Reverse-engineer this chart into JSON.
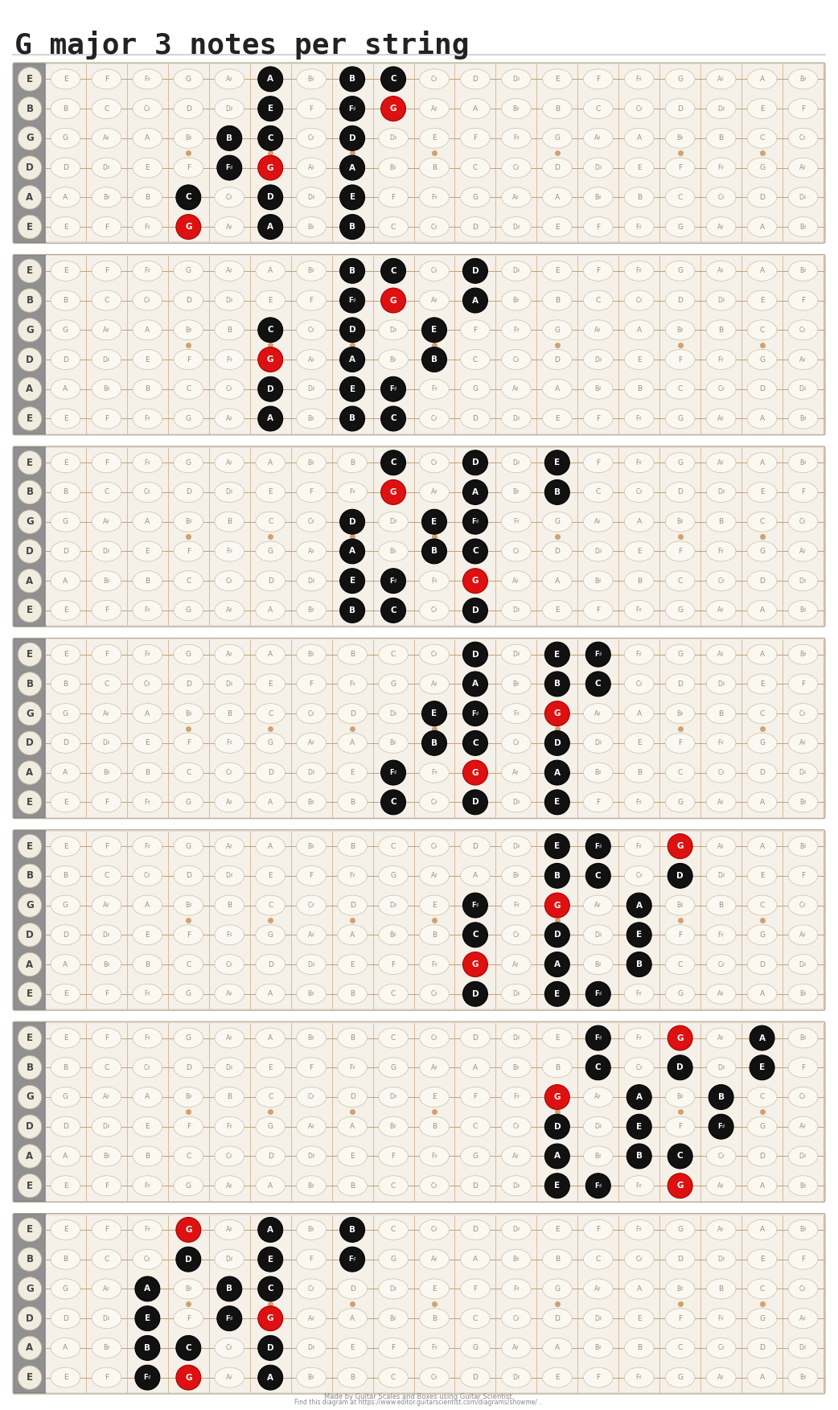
{
  "title": "G major 3 notes per string",
  "background_color": "#ffffff",
  "title_color": "#222222",
  "title_fontsize": 26,
  "diagram_bg": "#f5f0e8",
  "num_strings": 6,
  "num_frets": 19,
  "string_names_top_to_bottom": [
    "E",
    "B",
    "G",
    "D",
    "A",
    "E"
  ],
  "open_notes_midi": [
    4,
    11,
    7,
    2,
    9,
    4
  ],
  "chromatic": [
    "C",
    "C♯",
    "D",
    "D♯",
    "E",
    "F",
    "F♯",
    "G",
    "A♯",
    "A",
    "B♯",
    "B"
  ],
  "num_diagrams": 7,
  "diagrams": [
    {
      "notes": [
        {
          "string": 0,
          "fret": 5,
          "note": "A",
          "type": "black"
        },
        {
          "string": 0,
          "fret": 7,
          "note": "B",
          "type": "black"
        },
        {
          "string": 0,
          "fret": 8,
          "note": "C",
          "type": "black"
        },
        {
          "string": 1,
          "fret": 5,
          "note": "E",
          "type": "black"
        },
        {
          "string": 1,
          "fret": 7,
          "note": "F♯",
          "type": "black"
        },
        {
          "string": 1,
          "fret": 8,
          "note": "G",
          "type": "red"
        },
        {
          "string": 2,
          "fret": 4,
          "note": "B",
          "type": "black"
        },
        {
          "string": 2,
          "fret": 5,
          "note": "C",
          "type": "black"
        },
        {
          "string": 2,
          "fret": 7,
          "note": "D",
          "type": "black"
        },
        {
          "string": 3,
          "fret": 4,
          "note": "F♯",
          "type": "black"
        },
        {
          "string": 3,
          "fret": 5,
          "note": "G",
          "type": "red"
        },
        {
          "string": 3,
          "fret": 7,
          "note": "A",
          "type": "black"
        },
        {
          "string": 4,
          "fret": 3,
          "note": "C",
          "type": "black"
        },
        {
          "string": 4,
          "fret": 5,
          "note": "D",
          "type": "black"
        },
        {
          "string": 4,
          "fret": 7,
          "note": "E",
          "type": "black"
        },
        {
          "string": 5,
          "fret": 3,
          "note": "G",
          "type": "red"
        },
        {
          "string": 5,
          "fret": 5,
          "note": "A",
          "type": "black"
        },
        {
          "string": 5,
          "fret": 7,
          "note": "B",
          "type": "black"
        }
      ]
    },
    {
      "notes": [
        {
          "string": 0,
          "fret": 7,
          "note": "B",
          "type": "black"
        },
        {
          "string": 0,
          "fret": 8,
          "note": "C",
          "type": "black"
        },
        {
          "string": 0,
          "fret": 10,
          "note": "D",
          "type": "black"
        },
        {
          "string": 1,
          "fret": 7,
          "note": "F♯",
          "type": "black"
        },
        {
          "string": 1,
          "fret": 8,
          "note": "G",
          "type": "red"
        },
        {
          "string": 1,
          "fret": 10,
          "note": "A",
          "type": "black"
        },
        {
          "string": 2,
          "fret": 5,
          "note": "C",
          "type": "black"
        },
        {
          "string": 2,
          "fret": 7,
          "note": "D",
          "type": "black"
        },
        {
          "string": 2,
          "fret": 9,
          "note": "E",
          "type": "black"
        },
        {
          "string": 3,
          "fret": 5,
          "note": "G",
          "type": "red"
        },
        {
          "string": 3,
          "fret": 7,
          "note": "A",
          "type": "black"
        },
        {
          "string": 3,
          "fret": 9,
          "note": "B",
          "type": "black"
        },
        {
          "string": 4,
          "fret": 5,
          "note": "D",
          "type": "black"
        },
        {
          "string": 4,
          "fret": 7,
          "note": "E",
          "type": "black"
        },
        {
          "string": 4,
          "fret": 8,
          "note": "F♯",
          "type": "black"
        },
        {
          "string": 5,
          "fret": 5,
          "note": "A",
          "type": "black"
        },
        {
          "string": 5,
          "fret": 7,
          "note": "B",
          "type": "black"
        },
        {
          "string": 5,
          "fret": 8,
          "note": "C",
          "type": "black"
        }
      ]
    },
    {
      "notes": [
        {
          "string": 0,
          "fret": 8,
          "note": "C",
          "type": "black"
        },
        {
          "string": 0,
          "fret": 10,
          "note": "D",
          "type": "black"
        },
        {
          "string": 0,
          "fret": 12,
          "note": "E",
          "type": "black"
        },
        {
          "string": 1,
          "fret": 8,
          "note": "G",
          "type": "red"
        },
        {
          "string": 1,
          "fret": 10,
          "note": "A",
          "type": "black"
        },
        {
          "string": 1,
          "fret": 12,
          "note": "B",
          "type": "black"
        },
        {
          "string": 2,
          "fret": 7,
          "note": "D",
          "type": "black"
        },
        {
          "string": 2,
          "fret": 9,
          "note": "E",
          "type": "black"
        },
        {
          "string": 2,
          "fret": 10,
          "note": "F♯",
          "type": "black"
        },
        {
          "string": 3,
          "fret": 7,
          "note": "A",
          "type": "black"
        },
        {
          "string": 3,
          "fret": 9,
          "note": "B",
          "type": "black"
        },
        {
          "string": 3,
          "fret": 10,
          "note": "C",
          "type": "black"
        },
        {
          "string": 4,
          "fret": 7,
          "note": "E",
          "type": "black"
        },
        {
          "string": 4,
          "fret": 8,
          "note": "F♯",
          "type": "black"
        },
        {
          "string": 4,
          "fret": 10,
          "note": "G",
          "type": "red"
        },
        {
          "string": 5,
          "fret": 7,
          "note": "B",
          "type": "black"
        },
        {
          "string": 5,
          "fret": 8,
          "note": "C",
          "type": "black"
        },
        {
          "string": 5,
          "fret": 10,
          "note": "D",
          "type": "black"
        }
      ]
    },
    {
      "notes": [
        {
          "string": 0,
          "fret": 10,
          "note": "D",
          "type": "black"
        },
        {
          "string": 0,
          "fret": 12,
          "note": "E",
          "type": "black"
        },
        {
          "string": 0,
          "fret": 13,
          "note": "F♯",
          "type": "black"
        },
        {
          "string": 1,
          "fret": 10,
          "note": "A",
          "type": "black"
        },
        {
          "string": 1,
          "fret": 12,
          "note": "B",
          "type": "black"
        },
        {
          "string": 1,
          "fret": 13,
          "note": "C",
          "type": "black"
        },
        {
          "string": 2,
          "fret": 9,
          "note": "E",
          "type": "black"
        },
        {
          "string": 2,
          "fret": 10,
          "note": "F♯",
          "type": "black"
        },
        {
          "string": 2,
          "fret": 12,
          "note": "G",
          "type": "red"
        },
        {
          "string": 3,
          "fret": 9,
          "note": "B",
          "type": "black"
        },
        {
          "string": 3,
          "fret": 10,
          "note": "C",
          "type": "black"
        },
        {
          "string": 3,
          "fret": 12,
          "note": "D",
          "type": "black"
        },
        {
          "string": 4,
          "fret": 8,
          "note": "F♯",
          "type": "black"
        },
        {
          "string": 4,
          "fret": 10,
          "note": "G",
          "type": "red"
        },
        {
          "string": 4,
          "fret": 12,
          "note": "A",
          "type": "black"
        },
        {
          "string": 5,
          "fret": 8,
          "note": "C",
          "type": "black"
        },
        {
          "string": 5,
          "fret": 10,
          "note": "D",
          "type": "black"
        },
        {
          "string": 5,
          "fret": 12,
          "note": "E",
          "type": "black"
        }
      ]
    },
    {
      "notes": [
        {
          "string": 0,
          "fret": 12,
          "note": "E",
          "type": "black"
        },
        {
          "string": 0,
          "fret": 13,
          "note": "F♯",
          "type": "black"
        },
        {
          "string": 0,
          "fret": 15,
          "note": "G",
          "type": "red"
        },
        {
          "string": 1,
          "fret": 12,
          "note": "B",
          "type": "black"
        },
        {
          "string": 1,
          "fret": 13,
          "note": "C",
          "type": "black"
        },
        {
          "string": 1,
          "fret": 15,
          "note": "D",
          "type": "black"
        },
        {
          "string": 2,
          "fret": 10,
          "note": "F♯",
          "type": "black"
        },
        {
          "string": 2,
          "fret": 12,
          "note": "G",
          "type": "red"
        },
        {
          "string": 2,
          "fret": 14,
          "note": "A",
          "type": "black"
        },
        {
          "string": 3,
          "fret": 10,
          "note": "C",
          "type": "black"
        },
        {
          "string": 3,
          "fret": 12,
          "note": "D",
          "type": "black"
        },
        {
          "string": 3,
          "fret": 14,
          "note": "E",
          "type": "black"
        },
        {
          "string": 4,
          "fret": 10,
          "note": "G",
          "type": "red"
        },
        {
          "string": 4,
          "fret": 12,
          "note": "A",
          "type": "black"
        },
        {
          "string": 4,
          "fret": 14,
          "note": "B",
          "type": "black"
        },
        {
          "string": 5,
          "fret": 10,
          "note": "D",
          "type": "black"
        },
        {
          "string": 5,
          "fret": 12,
          "note": "E",
          "type": "black"
        },
        {
          "string": 5,
          "fret": 13,
          "note": "F♯",
          "type": "black"
        }
      ]
    },
    {
      "notes": [
        {
          "string": 0,
          "fret": 13,
          "note": "F♯",
          "type": "black"
        },
        {
          "string": 0,
          "fret": 15,
          "note": "G",
          "type": "red"
        },
        {
          "string": 0,
          "fret": 17,
          "note": "A",
          "type": "black"
        },
        {
          "string": 1,
          "fret": 13,
          "note": "C",
          "type": "black"
        },
        {
          "string": 1,
          "fret": 15,
          "note": "D",
          "type": "black"
        },
        {
          "string": 1,
          "fret": 17,
          "note": "E",
          "type": "black"
        },
        {
          "string": 2,
          "fret": 12,
          "note": "G",
          "type": "red"
        },
        {
          "string": 2,
          "fret": 14,
          "note": "A",
          "type": "black"
        },
        {
          "string": 2,
          "fret": 16,
          "note": "B",
          "type": "black"
        },
        {
          "string": 3,
          "fret": 12,
          "note": "D",
          "type": "black"
        },
        {
          "string": 3,
          "fret": 14,
          "note": "E",
          "type": "black"
        },
        {
          "string": 3,
          "fret": 16,
          "note": "F♯",
          "type": "black"
        },
        {
          "string": 4,
          "fret": 12,
          "note": "A",
          "type": "black"
        },
        {
          "string": 4,
          "fret": 14,
          "note": "B",
          "type": "black"
        },
        {
          "string": 4,
          "fret": 15,
          "note": "C",
          "type": "black"
        },
        {
          "string": 5,
          "fret": 12,
          "note": "E",
          "type": "black"
        },
        {
          "string": 5,
          "fret": 13,
          "note": "F♯",
          "type": "black"
        },
        {
          "string": 5,
          "fret": 15,
          "note": "G",
          "type": "red"
        }
      ]
    },
    {
      "notes": [
        {
          "string": 0,
          "fret": 3,
          "note": "G",
          "type": "red"
        },
        {
          "string": 0,
          "fret": 5,
          "note": "A",
          "type": "black"
        },
        {
          "string": 0,
          "fret": 7,
          "note": "B",
          "type": "black"
        },
        {
          "string": 1,
          "fret": 3,
          "note": "D",
          "type": "black"
        },
        {
          "string": 1,
          "fret": 5,
          "note": "E",
          "type": "black"
        },
        {
          "string": 1,
          "fret": 7,
          "note": "F♯",
          "type": "black"
        },
        {
          "string": 2,
          "fret": 2,
          "note": "A",
          "type": "black"
        },
        {
          "string": 2,
          "fret": 4,
          "note": "B",
          "type": "black"
        },
        {
          "string": 2,
          "fret": 5,
          "note": "C",
          "type": "black"
        },
        {
          "string": 3,
          "fret": 2,
          "note": "E",
          "type": "black"
        },
        {
          "string": 3,
          "fret": 4,
          "note": "F♯",
          "type": "black"
        },
        {
          "string": 3,
          "fret": 5,
          "note": "G",
          "type": "red"
        },
        {
          "string": 4,
          "fret": 2,
          "note": "B",
          "type": "black"
        },
        {
          "string": 4,
          "fret": 3,
          "note": "C",
          "type": "black"
        },
        {
          "string": 4,
          "fret": 5,
          "note": "D",
          "type": "black"
        },
        {
          "string": 5,
          "fret": 2,
          "note": "F♯",
          "type": "black"
        },
        {
          "string": 5,
          "fret": 3,
          "note": "G",
          "type": "red"
        },
        {
          "string": 5,
          "fret": 5,
          "note": "A",
          "type": "black"
        }
      ]
    }
  ]
}
